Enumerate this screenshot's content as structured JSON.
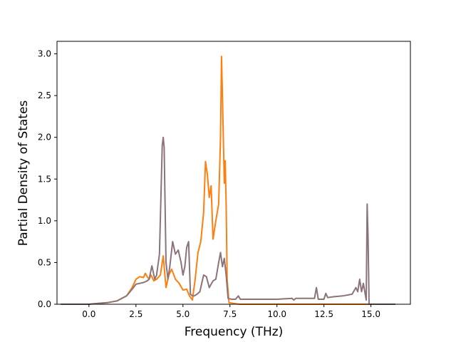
{
  "chart_data": {
    "type": "line",
    "title": "",
    "xlabel": "Frequency (THz)",
    "ylabel": "Partial Density of States",
    "xlim": [
      -1.7,
      17.1
    ],
    "ylim": [
      0.0,
      3.15
    ],
    "xticks": [
      0.0,
      2.5,
      5.0,
      7.5,
      10.0,
      12.5,
      15.0
    ],
    "xtick_labels": [
      "0.0",
      "2.5",
      "5.0",
      "7.5",
      "10.0",
      "12.5",
      "15.0"
    ],
    "yticks": [
      0.0,
      0.5,
      1.0,
      1.5,
      2.0,
      2.5,
      3.0
    ],
    "ytick_labels": [
      "0.0",
      "0.5",
      "1.0",
      "1.5",
      "2.0",
      "2.5",
      "3.0"
    ],
    "grid": false,
    "legend": "none",
    "series": [
      {
        "color": "#ff7f0e",
        "x": [
          -1.5,
          0.0,
          0.5,
          1.0,
          1.5,
          2.0,
          2.3,
          2.5,
          2.7,
          2.9,
          3.0,
          3.1,
          3.2,
          3.3,
          3.45,
          3.6,
          3.8,
          3.95,
          4.1,
          4.25,
          4.4,
          4.6,
          4.8,
          5.0,
          5.2,
          5.35,
          5.5,
          5.65,
          5.8,
          5.95,
          6.1,
          6.2,
          6.3,
          6.4,
          6.5,
          6.6,
          6.75,
          6.9,
          7.0,
          7.05,
          7.1,
          7.2,
          7.25,
          7.3,
          7.35,
          7.45,
          7.7,
          8.0,
          9.0,
          10.0,
          11.0,
          12.0,
          13.0,
          14.0,
          14.5,
          14.8,
          15.5,
          16.3
        ],
        "y": [
          0.0,
          0.0,
          0.01,
          0.02,
          0.04,
          0.1,
          0.2,
          0.3,
          0.33,
          0.32,
          0.37,
          0.33,
          0.3,
          0.35,
          0.28,
          0.3,
          0.35,
          0.58,
          0.2,
          0.35,
          0.42,
          0.3,
          0.25,
          0.17,
          0.18,
          0.1,
          0.05,
          0.3,
          0.62,
          0.75,
          1.1,
          1.71,
          1.55,
          1.28,
          1.42,
          0.78,
          1.0,
          1.2,
          2.0,
          2.97,
          2.5,
          1.45,
          1.72,
          1.2,
          0.3,
          0.02,
          0.01,
          0.0,
          0.0,
          0.0,
          0.0,
          0.0,
          0.0,
          0.0,
          0.0,
          0.0,
          0.0,
          0.0
        ]
      },
      {
        "color": "#8c7378",
        "x": [
          -1.5,
          0.0,
          0.5,
          1.0,
          1.5,
          2.0,
          2.3,
          2.5,
          2.7,
          2.9,
          3.0,
          3.1,
          3.2,
          3.35,
          3.5,
          3.6,
          3.75,
          3.9,
          3.95,
          4.0,
          4.1,
          4.2,
          4.3,
          4.45,
          4.6,
          4.75,
          4.9,
          5.0,
          5.1,
          5.2,
          5.3,
          5.4,
          5.5,
          5.6,
          5.75,
          5.9,
          6.1,
          6.25,
          6.4,
          6.5,
          6.6,
          6.75,
          6.9,
          7.0,
          7.1,
          7.2,
          7.3,
          7.4,
          7.6,
          7.8,
          7.95,
          8.05,
          8.2,
          9.0,
          10.0,
          10.8,
          10.9,
          11.0,
          12.0,
          12.1,
          12.2,
          12.5,
          12.6,
          12.7,
          13.0,
          13.5,
          14.0,
          14.2,
          14.3,
          14.4,
          14.5,
          14.6,
          14.75,
          14.8,
          14.85,
          14.9,
          15.5,
          16.3
        ],
        "y": [
          0.0,
          0.0,
          0.01,
          0.02,
          0.04,
          0.1,
          0.18,
          0.24,
          0.25,
          0.26,
          0.27,
          0.28,
          0.3,
          0.46,
          0.3,
          0.35,
          0.6,
          1.9,
          2.0,
          1.88,
          0.5,
          0.3,
          0.45,
          0.75,
          0.6,
          0.65,
          0.5,
          0.35,
          0.45,
          0.68,
          0.75,
          0.12,
          0.1,
          0.1,
          0.12,
          0.15,
          0.35,
          0.33,
          0.2,
          0.24,
          0.28,
          0.3,
          0.5,
          0.62,
          0.45,
          0.55,
          0.35,
          0.07,
          0.06,
          0.06,
          0.1,
          0.06,
          0.06,
          0.06,
          0.06,
          0.07,
          0.05,
          0.07,
          0.07,
          0.2,
          0.06,
          0.06,
          0.13,
          0.08,
          0.09,
          0.1,
          0.12,
          0.2,
          0.15,
          0.3,
          0.15,
          0.25,
          0.05,
          1.2,
          0.8,
          0.0,
          0.0,
          0.0
        ]
      }
    ]
  }
}
